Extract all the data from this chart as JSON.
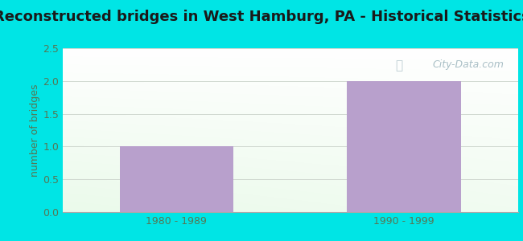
{
  "title": "Reconstructed bridges in West Hamburg, PA - Historical Statistics",
  "categories": [
    "1980 - 1989",
    "1990 - 1999"
  ],
  "values": [
    1,
    2
  ],
  "bar_color": "#b8a0cc",
  "ylabel": "number of bridges",
  "ylim": [
    0,
    2.5
  ],
  "yticks": [
    0,
    0.5,
    1,
    1.5,
    2,
    2.5
  ],
  "background_outer": "#00e5e5",
  "grid_color": "#d0d8d0",
  "title_fontsize": 13,
  "axis_label_color": "#557755",
  "tick_label_color": "#557755",
  "watermark": "City-Data.com",
  "title_color": "#1a1a1a"
}
